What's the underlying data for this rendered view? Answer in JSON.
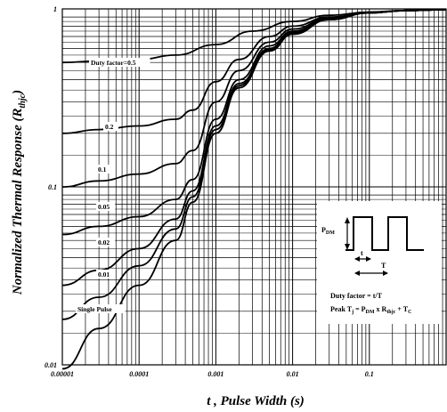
{
  "chart_data": {
    "type": "line",
    "title": "",
    "xlabel": "t , Pulse Width (s)",
    "ylabel": "Normalized Thermal Response (Rthjc)",
    "ylabel_main": "Normalized Thermal Response (R",
    "ylabel_sub": "thjc",
    "ylabel_close": ")",
    "x_scale": "log",
    "y_scale": "log",
    "xlim": [
      1e-05,
      1
    ],
    "ylim": [
      0.01,
      1
    ],
    "grid": true,
    "x_ticks": [
      {
        "value": 1e-05,
        "label": "0.00001"
      },
      {
        "value": 0.0001,
        "label": "0.0001"
      },
      {
        "value": 0.001,
        "label": "0.001"
      },
      {
        "value": 0.01,
        "label": "0.01"
      },
      {
        "value": 0.1,
        "label": "0.1"
      }
    ],
    "y_ticks": [
      {
        "value": 0.01,
        "label": "0.01"
      },
      {
        "value": 0.1,
        "label": "0.1"
      },
      {
        "value": 1,
        "label": "1"
      }
    ],
    "series": [
      {
        "name": "Duty factor=0.5",
        "x": [
          1e-05,
          3e-05,
          0.0001,
          0.0003,
          0.001,
          0.003,
          0.01,
          0.03,
          0.1,
          0.3,
          1
        ],
        "y": [
          0.5,
          0.51,
          0.52,
          0.55,
          0.63,
          0.75,
          0.85,
          0.92,
          0.96,
          0.98,
          0.99
        ]
      },
      {
        "name": "0.2",
        "x": [
          1e-05,
          3e-05,
          0.0001,
          0.0003,
          0.0005,
          0.001,
          0.002,
          0.005,
          0.01,
          0.03,
          0.1,
          0.3,
          1
        ],
        "y": [
          0.2,
          0.21,
          0.22,
          0.24,
          0.27,
          0.39,
          0.52,
          0.7,
          0.8,
          0.9,
          0.95,
          0.98,
          0.99
        ]
      },
      {
        "name": "0.1",
        "x": [
          1e-05,
          3e-05,
          0.0001,
          0.0003,
          0.0005,
          0.001,
          0.002,
          0.005,
          0.01,
          0.03,
          0.1,
          0.3,
          1
        ],
        "y": [
          0.1,
          0.108,
          0.118,
          0.135,
          0.16,
          0.3,
          0.45,
          0.65,
          0.77,
          0.89,
          0.95,
          0.98,
          0.99
        ]
      },
      {
        "name": "0.05",
        "x": [
          1e-05,
          3e-05,
          0.0001,
          0.0003,
          0.0005,
          0.001,
          0.002,
          0.005,
          0.01,
          0.03,
          0.1,
          0.3,
          1
        ],
        "y": [
          0.054,
          0.06,
          0.068,
          0.085,
          0.11,
          0.24,
          0.4,
          0.62,
          0.75,
          0.88,
          0.95,
          0.98,
          0.99
        ]
      },
      {
        "name": "0.02",
        "x": [
          1e-05,
          3e-05,
          0.0001,
          0.0003,
          0.0005,
          0.001,
          0.002,
          0.005,
          0.01,
          0.03,
          0.1,
          0.3,
          1
        ],
        "y": [
          0.028,
          0.034,
          0.045,
          0.066,
          0.095,
          0.22,
          0.38,
          0.6,
          0.74,
          0.88,
          0.95,
          0.98,
          0.99
        ]
      },
      {
        "name": "0.01",
        "x": [
          1e-05,
          3e-05,
          0.0001,
          0.0003,
          0.0005,
          0.001,
          0.002,
          0.005,
          0.01,
          0.03,
          0.1,
          0.3,
          1
        ],
        "y": [
          0.018,
          0.024,
          0.036,
          0.058,
          0.088,
          0.21,
          0.37,
          0.59,
          0.73,
          0.87,
          0.95,
          0.98,
          0.99
        ]
      },
      {
        "name": "Single Pulse",
        "x": [
          1e-05,
          3e-05,
          0.0001,
          0.0003,
          0.0005,
          0.001,
          0.002,
          0.005,
          0.01,
          0.03,
          0.1,
          0.3,
          1
        ],
        "y": [
          0.0095,
          0.016,
          0.028,
          0.05,
          0.082,
          0.2,
          0.36,
          0.58,
          0.72,
          0.87,
          0.95,
          0.98,
          0.99
        ]
      }
    ],
    "inset": {
      "pdm_main": "P",
      "pdm_sub": "DM",
      "t_label": "t",
      "T_label": "T",
      "duty_formula": "Duty factor = t/T",
      "peak_main": "Peak T",
      "peak_sub1": "j",
      "peak_mid1": " = P",
      "peak_sub2": "DM",
      "peak_mid2": " x R",
      "peak_sub3": "thjc",
      "peak_mid3": " + T",
      "peak_sub4": "C"
    }
  }
}
